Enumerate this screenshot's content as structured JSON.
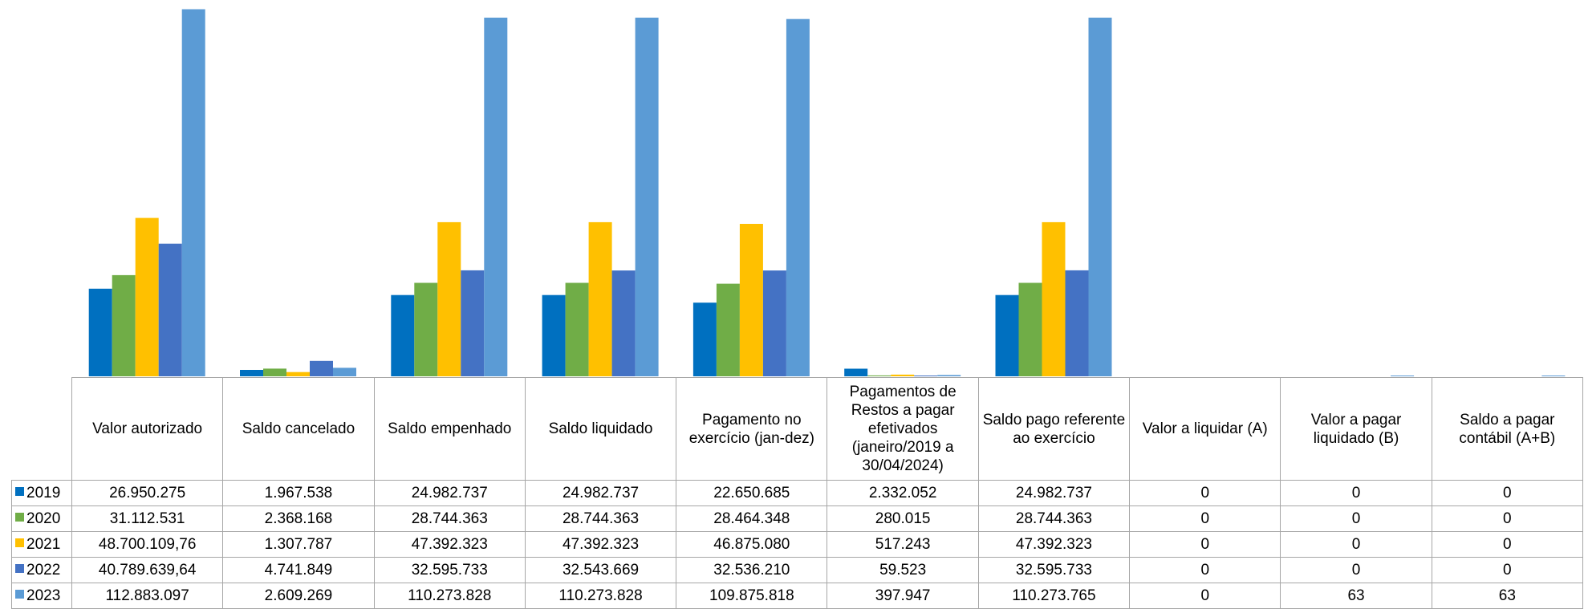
{
  "chart_data": {
    "type": "bar",
    "categories": [
      "Valor autorizado",
      "Saldo cancelado",
      "Saldo empenhado",
      "Saldo liquidado",
      "Pagamento no exercício (jan-dez)",
      "Pagamentos de Restos a pagar efetivados (janeiro/2019 a 30/04/2024)",
      "Saldo pago referente ao exercício",
      "Valor a liquidar (A)",
      "Valor a pagar liquidado (B)",
      "Saldo a pagar contábil (A+B)"
    ],
    "series": [
      {
        "name": "2019",
        "color": "#0070c0",
        "values": [
          26950275,
          1967538,
          24982737,
          24982737,
          22650685,
          2332052,
          24982737,
          0,
          0,
          0
        ],
        "labels": [
          "26.950.275",
          "1.967.538",
          "24.982.737",
          "24.982.737",
          "22.650.685",
          "2.332.052",
          "24.982.737",
          "0",
          "0",
          "0"
        ]
      },
      {
        "name": "2020",
        "color": "#70ad47",
        "values": [
          31112531,
          2368168,
          28744363,
          28744363,
          28464348,
          280015,
          28744363,
          0,
          0,
          0
        ],
        "labels": [
          "31.112.531",
          "2.368.168",
          "28.744.363",
          "28.744.363",
          "28.464.348",
          "280.015",
          "28.744.363",
          "0",
          "0",
          "0"
        ]
      },
      {
        "name": "2021",
        "color": "#ffc000",
        "values": [
          48700109.76,
          1307787,
          47392323,
          47392323,
          46875080,
          517243,
          47392323,
          0,
          0,
          0
        ],
        "labels": [
          "48.700.109,76",
          "1.307.787",
          "47.392.323",
          "47.392.323",
          "46.875.080",
          "517.243",
          "47.392.323",
          "0",
          "0",
          "0"
        ]
      },
      {
        "name": "2022",
        "color": "#4472c4",
        "values": [
          40789639.64,
          4741849,
          32595733,
          32543669,
          32536210,
          59523,
          32595733,
          0,
          0,
          0
        ],
        "labels": [
          "40.789.639,64",
          "4.741.849",
          "32.595.733",
          "32.543.669",
          "32.536.210",
          "59.523",
          "32.595.733",
          "0",
          "0",
          "0"
        ]
      },
      {
        "name": "2023",
        "color": "#5b9bd5",
        "values": [
          112883097,
          2609269,
          110273828,
          110273828,
          109875818,
          397947,
          110273765,
          0,
          63,
          63
        ],
        "labels": [
          "112.883.097",
          "2.609.269",
          "110.273.828",
          "110.273.828",
          "109.875.818",
          "397.947",
          "110.273.765",
          "0",
          "63",
          "63"
        ]
      }
    ],
    "ylim": [
      0,
      113000000
    ],
    "grid": false,
    "legend": "data-table"
  }
}
